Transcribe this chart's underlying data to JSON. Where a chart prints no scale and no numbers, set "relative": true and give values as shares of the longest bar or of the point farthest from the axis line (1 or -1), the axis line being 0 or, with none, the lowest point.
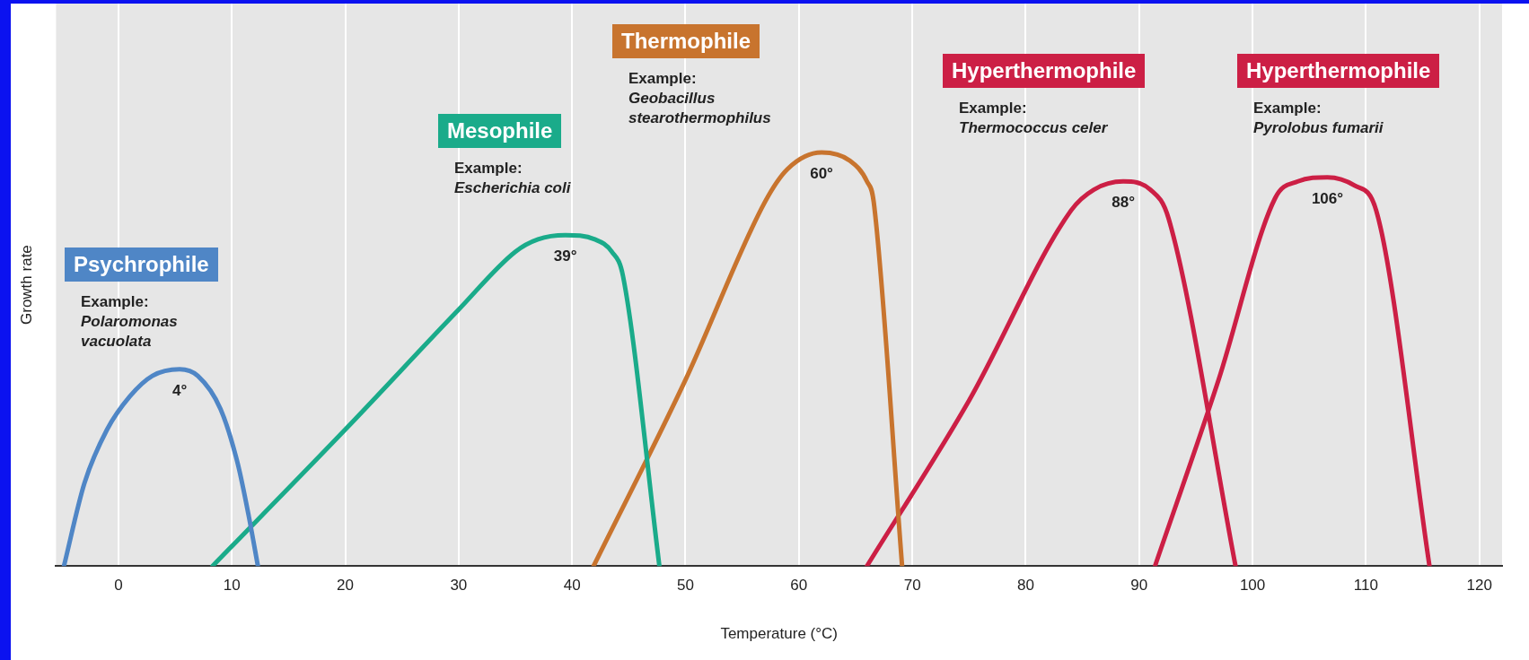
{
  "chart_data": {
    "type": "line",
    "relative": true,
    "xlabel": "Temperature (°C)",
    "ylabel": "Growth rate",
    "xlim": [
      -5.5,
      122
    ],
    "xticks": [
      0,
      10,
      20,
      30,
      40,
      50,
      60,
      70,
      80,
      90,
      100,
      110,
      120
    ],
    "grid": "x",
    "legend": false,
    "marker": "none",
    "line_style": "solid",
    "series": [
      {
        "name": "Psychrophile",
        "color": "#4f86c6",
        "x": [
          -4.8,
          -3,
          -1,
          1,
          3,
          5.4,
          7,
          9,
          10.5,
          11.5,
          12.3
        ],
        "values": [
          0,
          0.2,
          0.33,
          0.41,
          0.46,
          0.476,
          0.46,
          0.38,
          0.25,
          0.12,
          0
        ]
      },
      {
        "name": "Mesophile",
        "color": "#1aab8a",
        "x": [
          8.3,
          20,
          30,
          35,
          37,
          39.4,
          42,
          43.5,
          44.5,
          47.7
        ],
        "values": [
          0,
          0.33,
          0.62,
          0.76,
          0.79,
          0.8,
          0.79,
          0.76,
          0.7,
          0
        ]
      },
      {
        "name": "Thermophile",
        "color": "#c8742e",
        "x": [
          41.9,
          50,
          57,
          59,
          62,
          64.5,
          66,
          66.6,
          69.1
        ],
        "values": [
          0,
          0.45,
          0.88,
          0.96,
          1,
          0.98,
          0.93,
          0.88,
          0
        ]
      },
      {
        "name": "Hyperthermophile",
        "color": "#cc1f45",
        "x": [
          66,
          75,
          84,
          86,
          88.6,
          91,
          92.6,
          98.5
        ],
        "values": [
          0,
          0.4,
          0.86,
          0.91,
          0.93,
          0.91,
          0.84,
          0
        ]
      },
      {
        "name": "Hyperthermophile",
        "color": "#cc1f45",
        "x": [
          91.4,
          97,
          102,
          104,
          106.6,
          109,
          110.9,
          115.6
        ],
        "values": [
          0,
          0.45,
          0.89,
          0.93,
          0.94,
          0.92,
          0.86,
          0
        ]
      }
    ],
    "annotations": [
      "Example: Polaromonas vacuolata",
      "Example: Escherichia coli",
      "Example: Geobacillus stearothermophilus",
      "Example: Thermococcus celer",
      "Example: Pyrolobus fumarii",
      {
        "text": "4°",
        "x": 5.4,
        "y": 0.476
      },
      {
        "text": "39°",
        "x": 39.4,
        "y": 0.8
      },
      {
        "text": "60°",
        "x": 62,
        "y": 1
      },
      {
        "text": "88°",
        "x": 88.6,
        "y": 0.93
      },
      {
        "text": "106°",
        "x": 106.6,
        "y": 0.94
      }
    ]
  }
}
